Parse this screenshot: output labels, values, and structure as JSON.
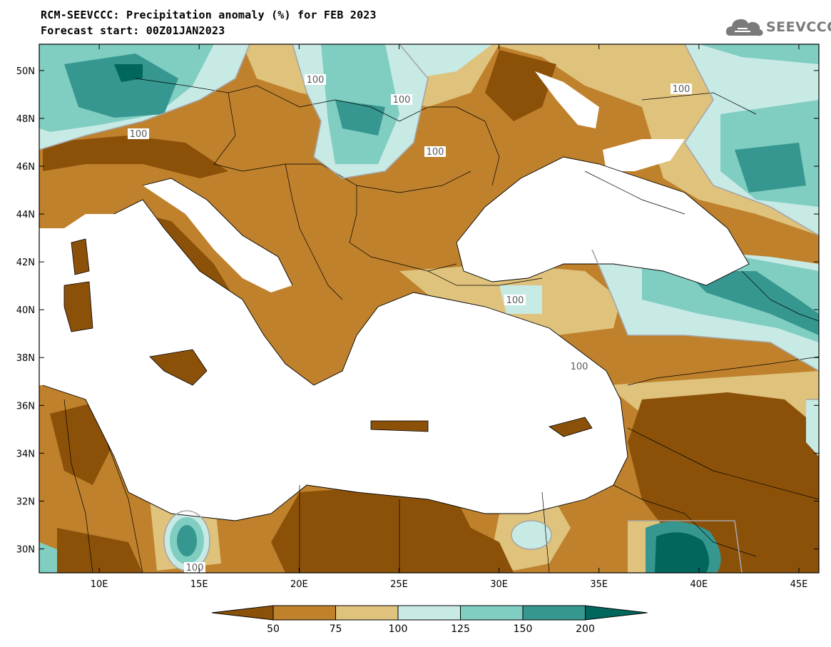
{
  "header": {
    "title_line1": "RCM-SEEVCCC: Precipitation anomaly (%) for FEB 2023",
    "title_line2": "Forecast start: 00Z01JAN2023",
    "logo_text": "SEEVCCC",
    "logo_icon": "cloud-icon"
  },
  "map": {
    "lat_labels": [
      "50N",
      "48N",
      "46N",
      "44N",
      "42N",
      "40N",
      "38N",
      "36N",
      "34N",
      "32N",
      "30N"
    ],
    "lon_labels": [
      "10E",
      "15E",
      "20E",
      "25E",
      "30E",
      "35E",
      "40E",
      "45E"
    ],
    "lat_values": [
      50,
      48,
      46,
      44,
      42,
      40,
      38,
      36,
      34,
      32,
      30
    ],
    "lon_values": [
      10,
      15,
      20,
      25,
      30,
      35,
      40,
      45
    ],
    "contour_label": "100",
    "colors": {
      "below50": "#8c5109",
      "c50_75": "#bf812c",
      "c75_100": "#dfc27c",
      "c100_125": "#c7eae5",
      "c125_150": "#80cdc1",
      "c150_200": "#35978f",
      "above200": "#01665e",
      "sea": "#ffffff"
    }
  },
  "colorbar": {
    "ticks": [
      "50",
      "75",
      "100",
      "125",
      "150",
      "200"
    ],
    "colors": [
      "#8c5109",
      "#bf812c",
      "#dfc27c",
      "#c7eae5",
      "#80cdc1",
      "#35978f",
      "#01665e"
    ]
  }
}
